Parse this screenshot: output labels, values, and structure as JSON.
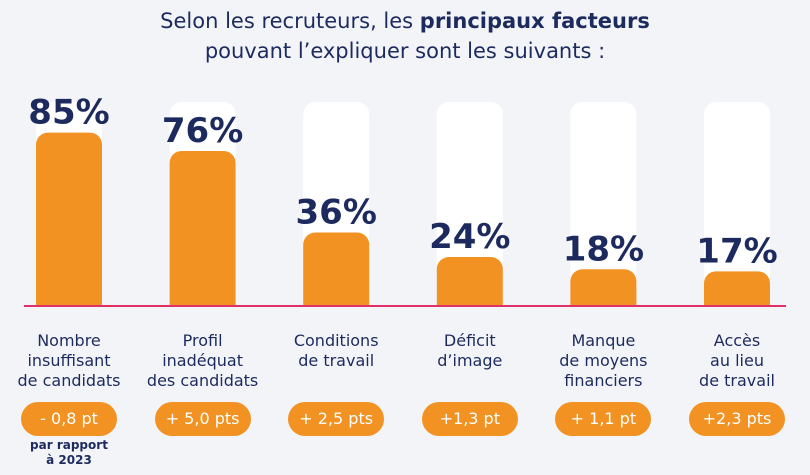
{
  "title": {
    "line1_prefix": "Selon les recruteurs, les ",
    "line1_bold": "principaux facteurs",
    "line2": "pouvant l’expliquer sont les suivants :"
  },
  "colors": {
    "bar": "#f29222",
    "track": "#ffffff",
    "baseline": "#e0306a",
    "text": "#1d2a5e"
  },
  "chart_data": {
    "type": "bar",
    "categories": [
      "Nombre insuffisant de candidats",
      "Profil inadéquat des candidats",
      "Conditions de travail",
      "Déficit d’image",
      "Manque de moyens financiers",
      "Accès au lieu de travail"
    ],
    "values": [
      85,
      76,
      36,
      24,
      18,
      17
    ],
    "value_labels": [
      "85%",
      "76%",
      "36%",
      "24%",
      "18%",
      "17%"
    ],
    "category_lines": [
      [
        "Nombre",
        "insuffisant",
        "de candidats"
      ],
      [
        "Profil",
        "inadéquat",
        "des candidats"
      ],
      [
        "Conditions",
        "de travail"
      ],
      [
        "Déficit",
        "d’image"
      ],
      [
        "Manque",
        "de moyens",
        "financiers"
      ],
      [
        "Accès",
        "au lieu",
        "de travail"
      ]
    ],
    "changes": [
      "- 0,8 pt",
      "+ 5,0 pts",
      "+ 2,5 pts",
      "+1,3 pt",
      "+ 1,1 pt",
      "+2,3 pts"
    ],
    "change_note": [
      "par rapport",
      "à 2023"
    ],
    "ylim": [
      0,
      100
    ],
    "grid": false
  }
}
